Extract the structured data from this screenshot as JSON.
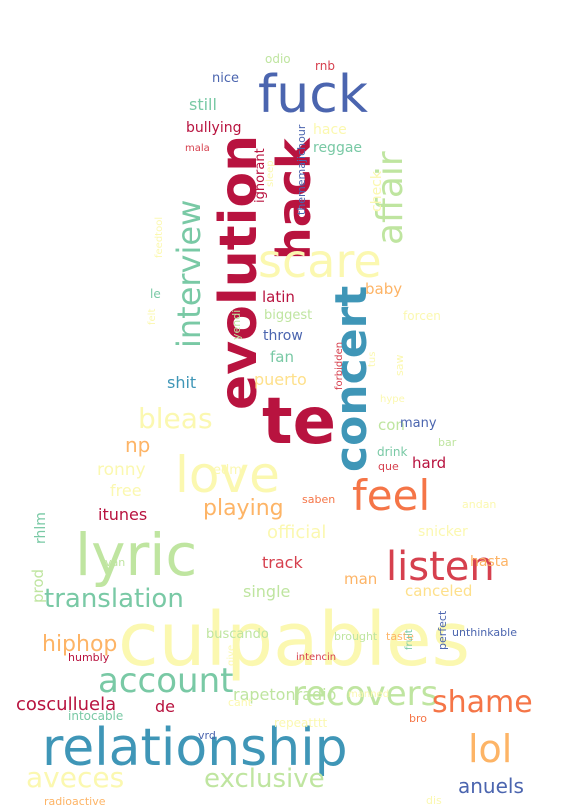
{
  "word_cloud": {
    "palette": {
      "dark_red": "#b8133f",
      "red": "#d6404e",
      "orange": "#f57547",
      "light_orange": "#fdb466",
      "yellow": "#fee08b",
      "pale_yellow": "#fbf8b0",
      "light_green": "#bfe5a0",
      "green": "#79c9a5",
      "teal": "#3f96b7",
      "blue": "#4b65af"
    },
    "words": [
      {
        "text": "culpables",
        "color": "pale_yellow"
      },
      {
        "text": "relationship",
        "color": "teal"
      },
      {
        "text": "lyric",
        "color": "light_green"
      },
      {
        "text": "te",
        "color": "dark_red"
      },
      {
        "text": "fuck",
        "color": "blue"
      },
      {
        "text": "evolution",
        "color": "dark_red"
      },
      {
        "text": "love",
        "color": "pale_yellow"
      },
      {
        "text": "hack",
        "color": "dark_red"
      },
      {
        "text": "concert",
        "color": "teal"
      },
      {
        "text": "scare",
        "color": "pale_yellow"
      },
      {
        "text": "affair",
        "color": "light_green"
      },
      {
        "text": "interview",
        "color": "green"
      },
      {
        "text": "feel",
        "color": "orange"
      },
      {
        "text": "listen",
        "color": "red"
      },
      {
        "text": "account",
        "color": "green"
      },
      {
        "text": "recovers",
        "color": "light_green"
      },
      {
        "text": "lol",
        "color": "light_orange"
      },
      {
        "text": "bleas",
        "color": "pale_yellow"
      },
      {
        "text": "shame",
        "color": "orange"
      },
      {
        "text": "aveces",
        "color": "pale_yellow"
      },
      {
        "text": "exclusive",
        "color": "light_green"
      },
      {
        "text": "translation",
        "color": "green"
      },
      {
        "text": "hiphop",
        "color": "light_orange"
      },
      {
        "text": "playing",
        "color": "light_orange"
      },
      {
        "text": "anuels",
        "color": "blue"
      },
      {
        "text": "np",
        "color": "light_orange"
      },
      {
        "text": "cosculluela",
        "color": "dark_red"
      },
      {
        "text": "rapetonradio",
        "color": "light_green"
      },
      {
        "text": "official",
        "color": "pale_yellow"
      },
      {
        "text": "track",
        "color": "red"
      },
      {
        "text": "itunes",
        "color": "dark_red"
      },
      {
        "text": "single",
        "color": "light_green"
      },
      {
        "text": "canceled",
        "color": "yellow"
      },
      {
        "text": "ronny",
        "color": "pale_yellow"
      },
      {
        "text": "free",
        "color": "pale_yellow"
      },
      {
        "text": "hard",
        "color": "dark_red"
      },
      {
        "text": "puerto",
        "color": "yellow"
      },
      {
        "text": "fan",
        "color": "green"
      },
      {
        "text": "shit",
        "color": "teal"
      },
      {
        "text": "latin",
        "color": "dark_red"
      },
      {
        "text": "baby",
        "color": "light_orange"
      },
      {
        "text": "still",
        "color": "green"
      },
      {
        "text": "check",
        "color": "pale_yellow"
      },
      {
        "text": "con",
        "color": "light_green"
      },
      {
        "text": "man",
        "color": "light_orange"
      },
      {
        "text": "prod",
        "color": "light_green"
      },
      {
        "text": "rhlm",
        "color": "green"
      },
      {
        "text": "de",
        "color": "dark_red"
      },
      {
        "text": "buscando",
        "color": "light_green"
      },
      {
        "text": "hasta",
        "color": "light_orange"
      },
      {
        "text": "snicker",
        "color": "pale_yellow"
      },
      {
        "text": "bullying",
        "color": "dark_red"
      },
      {
        "text": "reggae",
        "color": "green"
      },
      {
        "text": "hace",
        "color": "pale_yellow"
      },
      {
        "text": "throw",
        "color": "blue"
      },
      {
        "text": "biggest",
        "color": "light_green"
      },
      {
        "text": "forcen",
        "color": "pale_yellow"
      },
      {
        "text": "many",
        "color": "blue"
      },
      {
        "text": "drink",
        "color": "green"
      },
      {
        "text": "edm",
        "color": "pale_yellow"
      },
      {
        "text": "nice",
        "color": "blue"
      },
      {
        "text": "odio",
        "color": "light_green"
      },
      {
        "text": "rnb",
        "color": "red"
      },
      {
        "text": "le",
        "color": "green"
      },
      {
        "text": "thememajichour",
        "color": "blue"
      },
      {
        "text": "ignorant",
        "color": "dark_red"
      },
      {
        "text": "sleep",
        "color": "pale_yellow"
      },
      {
        "text": "mala",
        "color": "red"
      },
      {
        "text": "yendi",
        "color": "light_green"
      },
      {
        "text": "tus",
        "color": "pale_yellow"
      },
      {
        "text": "forbidden",
        "color": "red"
      },
      {
        "text": "saw",
        "color": "pale_yellow"
      },
      {
        "text": "hype",
        "color": "pale_yellow"
      },
      {
        "text": "bar",
        "color": "light_green"
      },
      {
        "text": "que",
        "color": "red"
      },
      {
        "text": "saben",
        "color": "orange"
      },
      {
        "text": "andan",
        "color": "pale_yellow"
      },
      {
        "text": "felt",
        "color": "pale_yellow"
      },
      {
        "text": "van",
        "color": "light_green"
      },
      {
        "text": "humbly",
        "color": "dark_red"
      },
      {
        "text": "brought",
        "color": "light_green"
      },
      {
        "text": "intencin",
        "color": "red"
      },
      {
        "text": "taste",
        "color": "light_orange"
      },
      {
        "text": "fruit",
        "color": "green"
      },
      {
        "text": "perfect",
        "color": "blue"
      },
      {
        "text": "unthinkable",
        "color": "blue"
      },
      {
        "text": "give",
        "color": "pale_yellow"
      },
      {
        "text": "manned",
        "color": "pale_yellow"
      },
      {
        "text": "vrd",
        "color": "blue"
      },
      {
        "text": "intocable",
        "color": "green"
      },
      {
        "text": "repeatttt",
        "color": "pale_yellow"
      },
      {
        "text": "bro",
        "color": "orange"
      },
      {
        "text": "radioactive",
        "color": "light_orange"
      },
      {
        "text": "dis",
        "color": "pale_yellow"
      },
      {
        "text": "feedtool",
        "color": "pale_yellow"
      },
      {
        "text": "cant",
        "color": "pale_yellow"
      }
    ]
  }
}
